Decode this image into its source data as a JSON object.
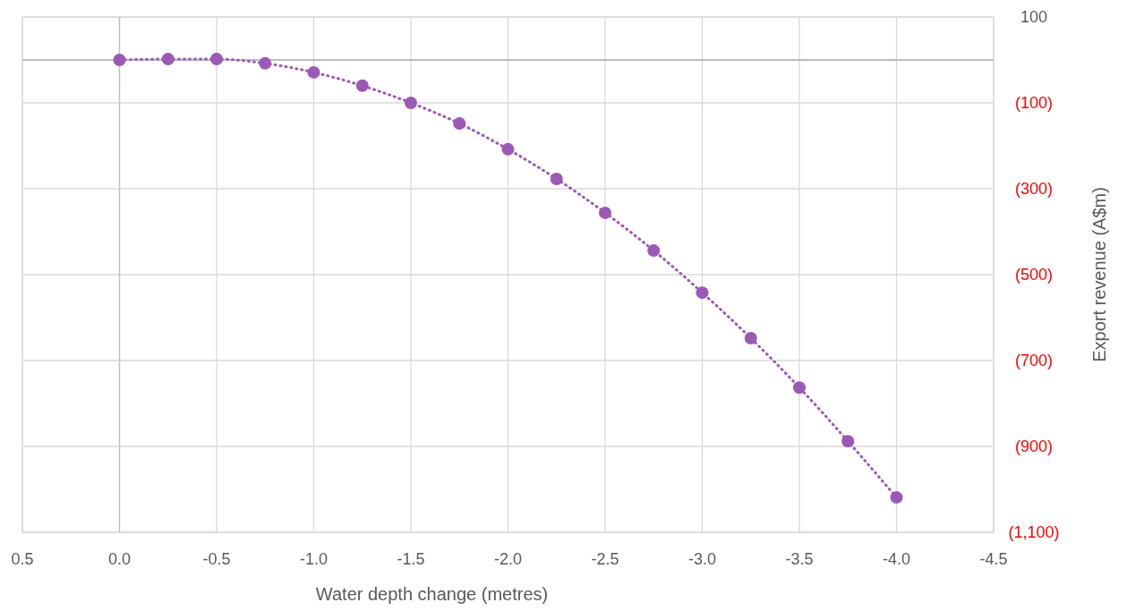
{
  "chart_data": {
    "type": "line",
    "xlabel": "Water depth change (metres)",
    "ylabel": "Export revenue (A$m)",
    "x": [
      0,
      -0.25,
      -0.5,
      -0.75,
      -1,
      -1.25,
      -1.5,
      -1.75,
      -2,
      -2.25,
      -2.5,
      -2.75,
      -3,
      -3.25,
      -3.5,
      -3.75,
      -4
    ],
    "series": [
      {
        "color": "#9b59b6",
        "values": [
          0,
          2,
          2,
          -8,
          -29,
          -60,
          -100,
          -148,
          -208,
          -277,
          -356,
          -444,
          -542,
          -648,
          -763,
          -888,
          -1019
        ]
      }
    ],
    "xlim": [
      0.5,
      -4.5
    ],
    "xticks": [
      0.5,
      {
        "value": 0,
        "label": "0.0"
      },
      -0.5,
      {
        "value": -1,
        "label": "-1.0"
      },
      -1.5,
      {
        "value": -2,
        "label": "-2.0"
      },
      -2.5,
      {
        "value": -3,
        "label": "-3.0"
      },
      -3.5,
      {
        "value": -4,
        "label": "-4.0"
      },
      -4.5
    ],
    "ylim": [
      -1100,
      100
    ],
    "yticks": [
      100,
      {
        "value": -100,
        "label": "(100)"
      },
      {
        "value": -300,
        "label": "(300)"
      },
      {
        "value": -500,
        "label": "(500)"
      },
      {
        "value": -700,
        "label": "(700)"
      },
      {
        "value": -900,
        "label": "(900)"
      },
      {
        "value": -1100,
        "label": "(1,100)"
      }
    ],
    "grid": true,
    "marker": "circle",
    "line_style": "dotted"
  }
}
